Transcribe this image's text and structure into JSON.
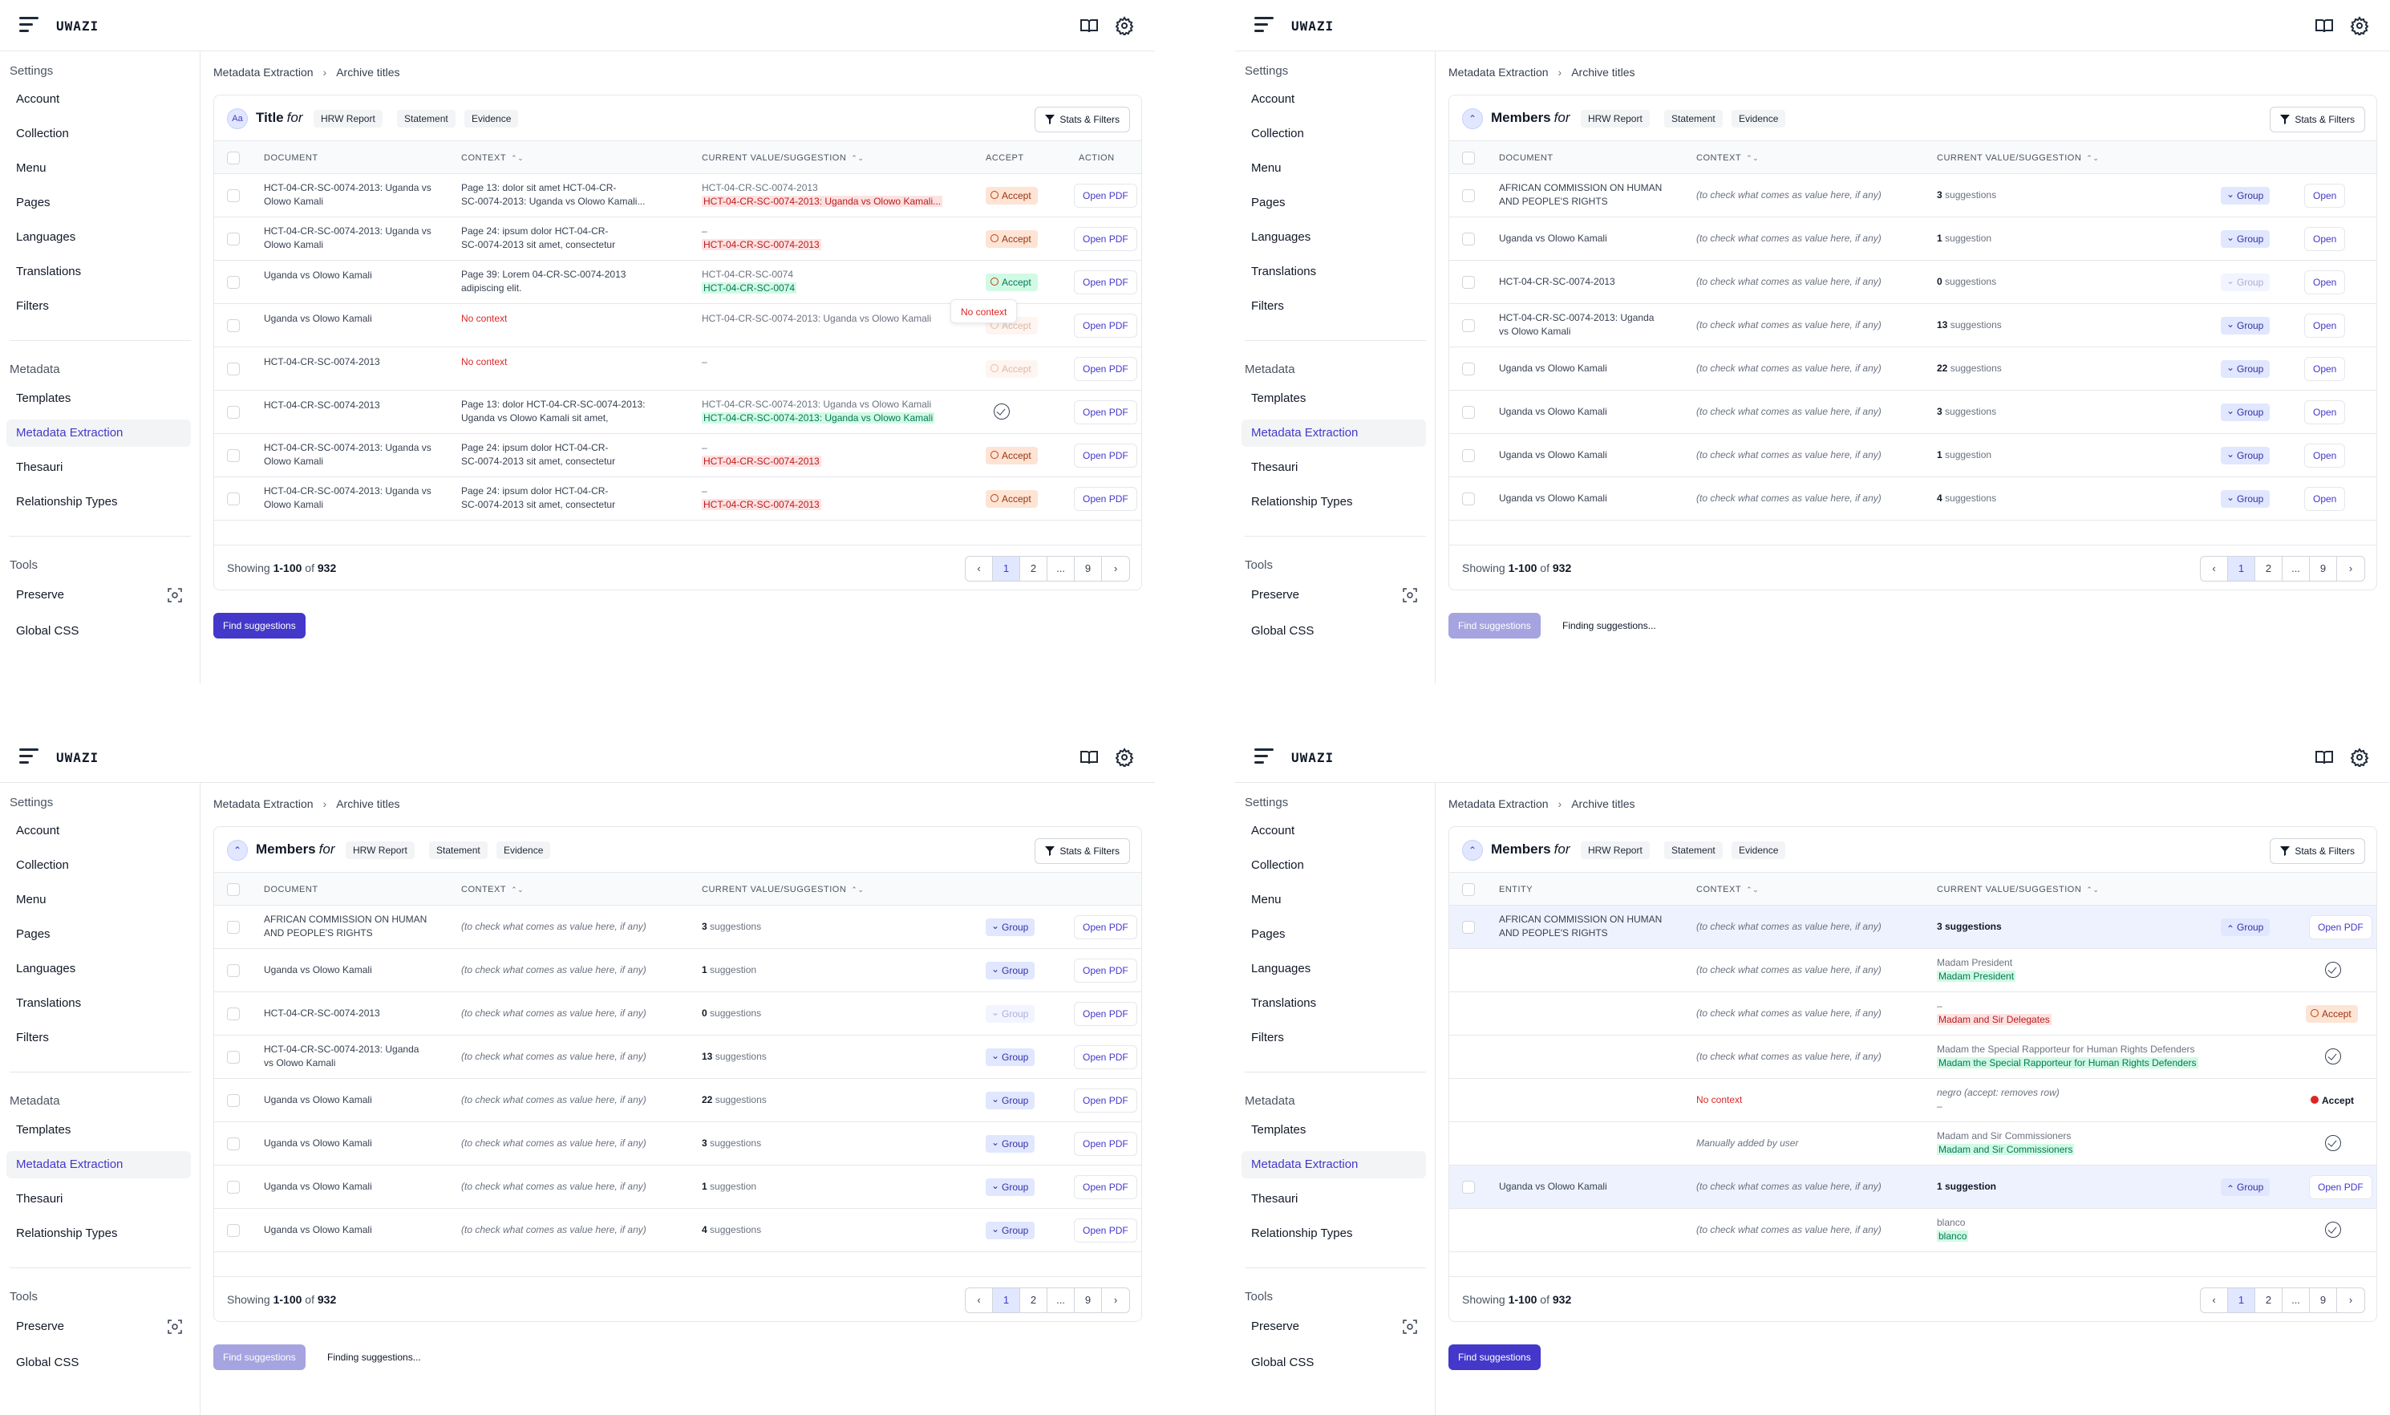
{
  "app": {
    "name": "UWAZI"
  },
  "sidebar": {
    "settings_head": "Settings",
    "settings_items": [
      "Account",
      "Collection",
      "Menu",
      "Pages",
      "Languages",
      "Translations",
      "Filters"
    ],
    "metadata_head": "Metadata",
    "metadata_items": [
      "Templates",
      "Metadata Extraction",
      "Thesauri",
      "Relationship Types"
    ],
    "tools_head": "Tools",
    "tools_items": [
      "Preserve",
      "Global CSS"
    ]
  },
  "breadcrumb": {
    "root": "Metadata Extraction",
    "current": "Archive titles"
  },
  "templates": [
    "HRW Report",
    "Statement",
    "Evidence"
  ],
  "stats_label": "Stats & Filters",
  "for_label": "for",
  "footer": {
    "prefix": "Showing ",
    "range": "1-100",
    "of": " of ",
    "total": "932"
  },
  "pager": [
    "‹",
    "1",
    "2",
    "...",
    "9",
    "›"
  ],
  "find_label": "Find suggestions",
  "finding_label": "Finding suggestions...",
  "open_pdf": "Open PDF",
  "open": "Open",
  "group": "Group",
  "accept": "Accept",
  "panel1": {
    "property": "Title",
    "prop_icon": "Aa",
    "columns": [
      "DOCUMENT",
      "CONTEXT",
      "CURRENT VALUE/SUGGESTION",
      "ACCEPT",
      "ACTION"
    ],
    "tooltip": "No context",
    "rows": [
      {
        "doc": "HCT-04-CR-SC-0074-2013: Uganda vs Olowo Kamali",
        "ctx1": "Page 13: dolor sit amet HCT-04-CR-",
        "ctx2": "SC-0074-2013: Uganda vs Olowo Kamali...",
        "cur": "HCT-04-CR-SC-0074-2013",
        "sug": "HCT-04-CR-SC-0074-2013: Uganda vs Olowo Kamali...",
        "sugType": "red",
        "accept": "orange"
      },
      {
        "doc": "HCT-04-CR-SC-0074-2013: Uganda vs Olowo Kamali",
        "ctx1": "Page 24: ipsum dolor HCT-04-CR-",
        "ctx2": "SC-0074-2013 sit amet, consectetur",
        "cur": "–",
        "sug": "HCT-04-CR-SC-0074-2013",
        "sugType": "red",
        "accept": "orange"
      },
      {
        "doc": "Uganda vs Olowo Kamali",
        "ctx1": "Page 39: Lorem 04-CR-SC-0074-2013",
        "ctx2": "adipiscing elit.",
        "cur": "HCT-04-CR-SC-0074",
        "sug": "HCT-04-CR-SC-0074",
        "sugType": "green",
        "accept": "green"
      },
      {
        "doc": "Uganda vs Olowo Kamali",
        "ctx1": "No context",
        "ctx2": "",
        "cur": "HCT-04-CR-SC-0074-2013: Uganda vs Olowo Kamali",
        "sug": "",
        "sugType": "",
        "accept": "dim"
      },
      {
        "doc": "HCT-04-CR-SC-0074-2013",
        "ctx1": "No context",
        "ctx2": "",
        "cur": "–",
        "sug": "",
        "sugType": "",
        "accept": "dim"
      },
      {
        "doc": "HCT-04-CR-SC-0074-2013",
        "ctx1": "Page 13: dolor HCT-04-CR-SC-0074-2013:",
        "ctx2": "Uganda vs Olowo Kamali sit amet,",
        "cur": "HCT-04-CR-SC-0074-2013: Uganda vs Olowo Kamali",
        "sug": "HCT-04-CR-SC-0074-2013: Uganda vs Olowo Kamali",
        "sugType": "green",
        "accept": "check"
      },
      {
        "doc": "HCT-04-CR-SC-0074-2013: Uganda vs Olowo Kamali",
        "ctx1": "Page 24: ipsum dolor HCT-04-CR-",
        "ctx2": "SC-0074-2013 sit amet, consectetur",
        "cur": "–",
        "sug": "HCT-04-CR-SC-0074-2013",
        "sugType": "red",
        "accept": "orange"
      },
      {
        "doc": "HCT-04-CR-SC-0074-2013: Uganda vs Olowo Kamali",
        "ctx1": "Page 24: ipsum dolor HCT-04-CR-",
        "ctx2": "SC-0074-2013 sit amet, consectetur",
        "cur": "–",
        "sug": "HCT-04-CR-SC-0074-2013",
        "sugType": "red",
        "accept": "orange"
      }
    ]
  },
  "members": {
    "property": "Members",
    "columns": [
      "DOCUMENT",
      "CONTEXT",
      "CURRENT VALUE/SUGGESTION"
    ],
    "context_hint": "(to check what comes as value here, if any)",
    "rows": [
      {
        "doc1": "AFRICAN COMMISSION ON HUMAN",
        "doc2": "AND PEOPLE'S RIGHTS",
        "count": "3",
        "label": " suggestions"
      },
      {
        "doc1": "Uganda vs Olowo Kamali",
        "doc2": "",
        "count": "1",
        "label": " suggestion"
      },
      {
        "doc1": "HCT-04-CR-SC-0074-2013",
        "doc2": "",
        "count": "0",
        "label": " suggestions"
      },
      {
        "doc1": "HCT-04-CR-SC-0074-2013: Uganda",
        "doc2": "vs Olowo Kamali",
        "count": "13",
        "label": " suggestions"
      },
      {
        "doc1": "Uganda vs Olowo Kamali",
        "doc2": "",
        "count": "22",
        "label": " suggestions"
      },
      {
        "doc1": "Uganda vs Olowo Kamali",
        "doc2": "",
        "count": "3",
        "label": " suggestions"
      },
      {
        "doc1": "Uganda vs Olowo Kamali",
        "doc2": "",
        "count": "1",
        "label": " suggestion"
      },
      {
        "doc1": "Uganda vs Olowo Kamali",
        "doc2": "",
        "count": "4",
        "label": " suggestions"
      }
    ]
  },
  "panel4": {
    "columns": [
      "ENTITY",
      "CONTEXT",
      "CURRENT VALUE/SUGGESTION"
    ],
    "rows": [
      {
        "kind": "group",
        "doc1": "AFRICAN COMMISSION ON HUMAN",
        "doc2": "AND PEOPLE'S RIGHTS",
        "ctx": "(to check what comes as value here, if any)",
        "val": "3 suggestions"
      },
      {
        "kind": "sub",
        "ctx": "(to check what comes as value here, if any)",
        "cur": "Madam President",
        "sug": "Madam President",
        "sugType": "green",
        "act": "check"
      },
      {
        "kind": "sub",
        "ctx": "(to check what comes as value here, if any)",
        "cur": "–",
        "sug": "Madam and Sir Delegates",
        "sugType": "red",
        "act": "orange"
      },
      {
        "kind": "sub",
        "ctx": "(to check what comes as value here, if any)",
        "cur": "Madam the Special Rapporteur for Human Rights Defenders",
        "sug": "Madam the Special Rapporteur for Human Rights Defenders",
        "sugType": "green",
        "act": "check"
      },
      {
        "kind": "sub",
        "ctx": "No context",
        "ctxType": "red",
        "cur": "negro (accept: removes row)",
        "sug": "–",
        "sugType": "plain",
        "act": "plain"
      },
      {
        "kind": "sub",
        "ctx": "Manually added by user",
        "cur": "Madam and Sir Commissioners",
        "sug": "Madam and Sir Commissioners",
        "sugType": "green",
        "act": "check"
      },
      {
        "kind": "group",
        "doc1": "Uganda vs Olowo Kamali",
        "doc2": "",
        "ctx": "(to check what comes as value here, if any)",
        "val": "1 suggestion"
      },
      {
        "kind": "sub",
        "ctx": "(to check what comes as value here, if any)",
        "cur": "blanco",
        "sug": "blanco",
        "sugType": "green",
        "act": "check"
      }
    ]
  }
}
